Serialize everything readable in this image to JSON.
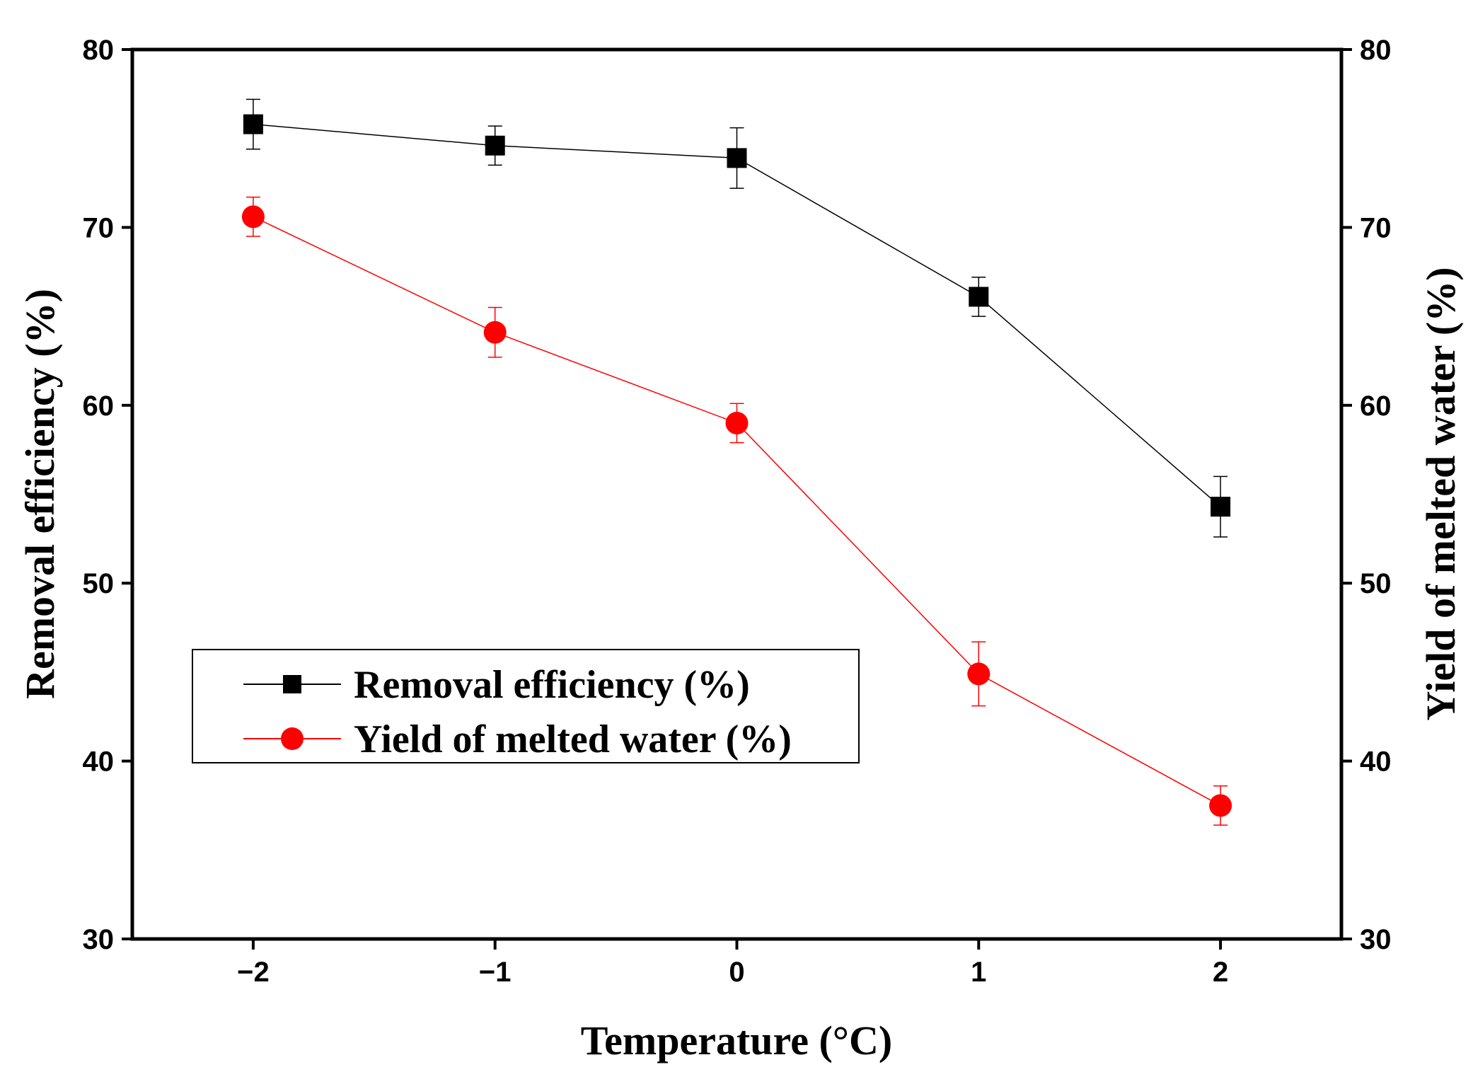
{
  "chart_data": {
    "type": "line",
    "title": "",
    "xlabel": "Temperature (°C)",
    "ylabel_left": "Removal efficiency (%)",
    "ylabel_right": "Yield of melted water (%)",
    "x": [
      -2,
      -1,
      0,
      1,
      2
    ],
    "x_tick_labels": [
      "−2",
      "−1",
      "0",
      "1",
      "2"
    ],
    "xlim": [
      -2.5,
      2.5
    ],
    "ylim": [
      30,
      80
    ],
    "y_ticks": [
      30,
      40,
      50,
      60,
      70,
      80
    ],
    "y_tick_labels": [
      "30",
      "40",
      "50",
      "60",
      "70",
      "80"
    ],
    "grid": false,
    "legend_position": "lower-left",
    "series": [
      {
        "name": "Removal efficiency (%)",
        "axis": "left",
        "marker": "square",
        "color": "#000000",
        "values": [
          75.8,
          74.6,
          73.9,
          66.1,
          54.3
        ],
        "error": [
          1.4,
          1.1,
          1.7,
          1.1,
          1.7
        ]
      },
      {
        "name": "Yield of melted water (%)",
        "axis": "right",
        "marker": "circle",
        "color": "#ff0000",
        "values": [
          70.6,
          64.1,
          59.0,
          44.9,
          37.5
        ],
        "error": [
          1.1,
          1.4,
          1.1,
          1.8,
          1.1
        ]
      }
    ]
  }
}
